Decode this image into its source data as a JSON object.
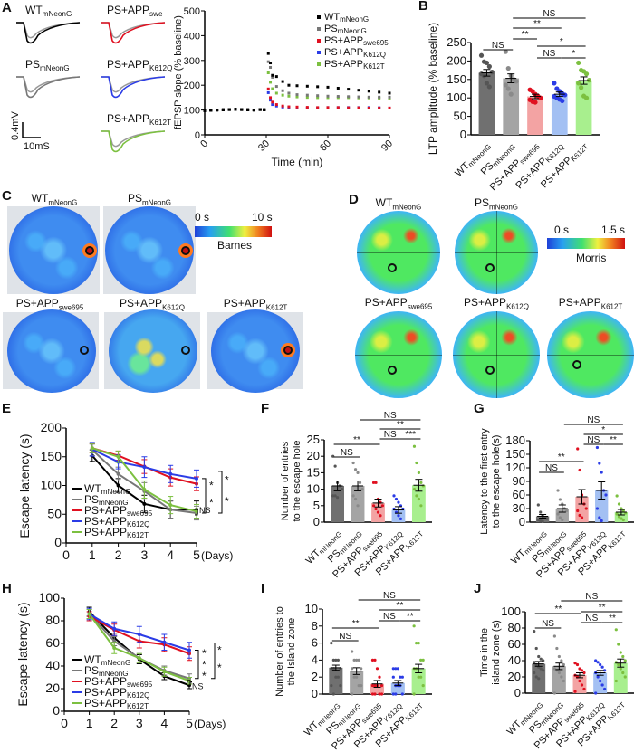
{
  "panel_letters": [
    "A",
    "B",
    "C",
    "D",
    "E",
    "F",
    "G",
    "H",
    "I",
    "J"
  ],
  "colors": {
    "WT": "#000000",
    "PS": "#777777",
    "swe695": "#e01020",
    "K612Q": "#2b3ce6",
    "K612T": "#7cc040"
  },
  "groups": [
    {
      "main": "WT",
      "sub": "mNeonG"
    },
    {
      "main": "PS",
      "sub": "mNeonG"
    },
    {
      "main": "PS+APP",
      "sub": "swe695"
    },
    {
      "main": "PS+APP",
      "sub": "K612Q"
    },
    {
      "main": "PS+APP",
      "sub": "K612T"
    }
  ],
  "traces": {
    "labels": [
      {
        "main": "WT",
        "sub": "mNeonG"
      },
      {
        "main": "PS+APP",
        "sub": "swe"
      },
      {
        "main": "PS",
        "sub": "mNeonG"
      },
      {
        "main": "PS+APP",
        "sub": "K612Q"
      },
      {
        "main": "PS+APP",
        "sub": "K612T"
      }
    ],
    "scale_v": "0.4mV",
    "scale_t": "10mS"
  },
  "heatmaps": {
    "barnes": {
      "labels": [
        {
          "main": "WT",
          "sub": "mNeonG"
        },
        {
          "main": "PS",
          "sub": "mNeonG"
        },
        {
          "main": "PS+APP",
          "sub": "swe695"
        },
        {
          "main": "PS+APP",
          "sub": "K612Q"
        },
        {
          "main": "PS+APP",
          "sub": "K612T"
        }
      ],
      "scale_min": "0 s",
      "scale_max": "10 s",
      "scale_name": "Barnes"
    },
    "morris": {
      "labels": [
        {
          "main": "WT",
          "sub": "mNeonG"
        },
        {
          "main": "PS",
          "sub": "mNeonG"
        },
        {
          "main": "PS+APP",
          "sub": "swe695"
        },
        {
          "main": "PS+APP",
          "sub": "K612Q"
        },
        {
          "main": "PS+APP",
          "sub": "K612T"
        }
      ],
      "scale_min": "0 s",
      "scale_max": "1.5 s",
      "scale_name": "Morris"
    }
  },
  "chart_data": [
    {
      "id": "A",
      "type": "scatter",
      "xlabel": "Time (min)",
      "ylabel": "fEPSP slope (% baseline)",
      "xlim": [
        0,
        90
      ],
      "ylim": [
        0,
        500
      ],
      "xticks": [
        0,
        30,
        60,
        90
      ],
      "yticks": [
        0,
        100,
        200,
        300,
        400,
        500
      ],
      "legend": "top-right",
      "x": [
        0,
        3,
        6,
        9,
        12,
        15,
        18,
        21,
        24,
        27,
        29,
        31,
        32,
        33,
        35,
        38,
        41,
        45,
        50,
        55,
        60,
        65,
        70,
        75,
        80,
        85,
        90
      ],
      "series": [
        {
          "name": "WT mNeonG",
          "key": "WT",
          "marker": "square",
          "values": [
            98,
            99,
            100,
            101,
            102,
            103,
            102,
            101,
            100,
            102,
            101,
            328,
            290,
            240,
            235,
            215,
            200,
            198,
            196,
            194,
            192,
            188,
            184,
            180,
            176,
            172,
            168
          ]
        },
        {
          "name": "PS mNeonG",
          "key": "PS",
          "marker": "circle",
          "values": [
            98,
            99,
            100,
            101,
            102,
            103,
            102,
            101,
            100,
            102,
            101,
            295,
            272,
            232,
            195,
            178,
            168,
            162,
            160,
            158,
            156,
            155,
            154,
            153,
            152,
            152,
            152
          ]
        },
        {
          "name": "PS+APP swe695",
          "key": "swe695",
          "marker": "triangle-down",
          "values": [
            98,
            99,
            100,
            101,
            102,
            103,
            102,
            101,
            100,
            102,
            101,
            185,
            150,
            132,
            122,
            116,
            113,
            112,
            111,
            110,
            110,
            110,
            109,
            109,
            108,
            108,
            108
          ]
        },
        {
          "name": "PS+APP K612Q",
          "key": "K612Q",
          "marker": "triangle-up",
          "values": [
            98,
            99,
            100,
            101,
            102,
            103,
            102,
            101,
            100,
            102,
            101,
            170,
            140,
            122,
            116,
            112,
            110,
            108,
            108,
            109,
            110,
            110,
            110,
            110,
            110,
            109,
            108
          ]
        },
        {
          "name": "PS+APP K612T",
          "key": "K612T",
          "marker": "diamond",
          "values": [
            98,
            99,
            100,
            101,
            102,
            103,
            102,
            101,
            100,
            102,
            101,
            250,
            212,
            186,
            168,
            160,
            156,
            153,
            151,
            150,
            150,
            150,
            150,
            149,
            149,
            148,
            148
          ]
        }
      ]
    },
    {
      "id": "B",
      "type": "bar",
      "ylabel": "LTP amplitude (% baseline)",
      "ylim": [
        0,
        250
      ],
      "yticks": [
        0,
        50,
        100,
        150,
        200,
        250
      ],
      "values": [
        168,
        153,
        104,
        110,
        147
      ],
      "errors": [
        9,
        12,
        6,
        6,
        10
      ],
      "points": [
        [
          215,
          198,
          195,
          185,
          170,
          165,
          160,
          140,
          130
        ],
        [
          225,
          180,
          160,
          150,
          145,
          135,
          125,
          110
        ],
        [
          122,
          118,
          110,
          105,
          100,
          95,
          90,
          88
        ],
        [
          140,
          125,
          118,
          112,
          108,
          104,
          100,
          96,
          92
        ],
        [
          195,
          175,
          172,
          165,
          148,
          140,
          128,
          105,
          100
        ]
      ],
      "significance": [
        {
          "from": 1,
          "to": 2,
          "label": "NS"
        },
        {
          "from": 2,
          "to": 3,
          "label": "**"
        },
        {
          "from": 2,
          "to": 4,
          "label": "**"
        },
        {
          "from": 2,
          "to": 5,
          "label": "NS"
        },
        {
          "from": 3,
          "to": 5,
          "label": "*"
        },
        {
          "from": 3,
          "to": 4,
          "label": "NS"
        },
        {
          "from": 4,
          "to": 5,
          "label": "*"
        }
      ]
    },
    {
      "id": "E",
      "type": "line",
      "ylabel": "Escape latency (s)",
      "xunit": "(Days)",
      "xlim": [
        0,
        5
      ],
      "ylim": [
        0,
        200
      ],
      "xticks": [
        0,
        1,
        2,
        3,
        4,
        5
      ],
      "yticks": [
        0,
        50,
        100,
        150,
        200
      ],
      "legend": "bottom-left",
      "x": [
        1,
        2,
        3,
        4,
        5
      ],
      "series": [
        {
          "name": "WT mNeonG",
          "key": "WT",
          "values": [
            152,
            100,
            68,
            58,
            58
          ],
          "errors": [
            10,
            12,
            15,
            15,
            15
          ]
        },
        {
          "name": "PS mNeonG",
          "key": "PS",
          "values": [
            162,
            120,
            90,
            58,
            52
          ],
          "errors": [
            10,
            12,
            15,
            15,
            12
          ]
        },
        {
          "name": "PS+APP swe695",
          "key": "swe695",
          "values": [
            165,
            152,
            133,
            114,
            103
          ],
          "errors": [
            8,
            8,
            12,
            15,
            12
          ]
        },
        {
          "name": "PS+APP K612Q",
          "key": "K612Q",
          "values": [
            163,
            141,
            132,
            120,
            112
          ],
          "errors": [
            12,
            12,
            18,
            15,
            15
          ]
        },
        {
          "name": "PS+APP K612T",
          "key": "K612T",
          "values": [
            165,
            150,
            93,
            66,
            55
          ],
          "errors": [
            8,
            10,
            15,
            15,
            12
          ]
        }
      ],
      "annotations": [
        "*",
        "*",
        "*",
        "*",
        "NS"
      ]
    },
    {
      "id": "F",
      "type": "bar",
      "ylabel": [
        "Number of entries",
        "to the escape hole"
      ],
      "ylim": [
        0,
        25
      ],
      "yticks": [
        0,
        5,
        10,
        15,
        20,
        25
      ],
      "values": [
        11,
        11,
        5.8,
        3.7,
        11.2
      ],
      "errors": [
        1.5,
        1.5,
        1.2,
        1,
        1.8
      ],
      "points": [
        [
          20,
          17,
          12,
          11,
          10,
          8,
          8,
          7.5
        ],
        [
          18,
          16,
          15,
          12,
          10,
          8,
          7,
          5
        ],
        [
          12,
          12,
          7,
          6,
          5,
          5,
          4,
          3,
          2
        ],
        [
          8,
          7,
          6,
          5,
          4,
          4,
          3,
          2,
          1
        ],
        [
          23,
          18,
          15,
          12,
          11,
          10,
          8,
          7,
          5
        ]
      ],
      "significance": [
        {
          "from": 2,
          "to": 5,
          "label": "NS"
        },
        {
          "from": 3,
          "to": 5,
          "label": "**"
        },
        {
          "from": 3,
          "to": 4,
          "label": "NS"
        },
        {
          "from": 4,
          "to": 5,
          "label": "***"
        },
        {
          "from": 1,
          "to": 3,
          "label": "**"
        },
        {
          "from": 1,
          "to": 2,
          "label": "NS"
        }
      ]
    },
    {
      "id": "G",
      "type": "bar",
      "ylabel": [
        "Latency to the first entry",
        "to the escape hole(s)"
      ],
      "ylim": [
        0,
        180
      ],
      "yticks": [
        0,
        30,
        60,
        90,
        120,
        150,
        180
      ],
      "values": [
        13,
        30,
        56,
        70,
        22
      ],
      "errors": [
        4,
        8,
        16,
        19,
        6
      ],
      "points": [
        [
          38,
          22,
          15,
          10,
          8,
          5,
          3,
          2
        ],
        [
          70,
          50,
          40,
          30,
          25,
          18,
          10,
          5
        ],
        [
          162,
          115,
          60,
          40,
          30,
          25,
          15,
          10
        ],
        [
          165,
          130,
          110,
          70,
          60,
          30,
          10,
          3
        ],
        [
          58,
          40,
          30,
          25,
          20,
          18,
          12,
          8,
          5
        ]
      ],
      "significance": [
        {
          "from": 2,
          "to": 5,
          "label": "NS"
        },
        {
          "from": 3,
          "to": 5,
          "label": "*"
        },
        {
          "from": 3,
          "to": 4,
          "label": "NS"
        },
        {
          "from": 4,
          "to": 5,
          "label": "**"
        },
        {
          "from": 1,
          "to": 3,
          "label": "**"
        },
        {
          "from": 1,
          "to": 2,
          "label": "NS"
        }
      ]
    },
    {
      "id": "H",
      "type": "line",
      "ylabel": "Escape latency (s)",
      "xunit": "(Days)",
      "xlim": [
        0,
        5
      ],
      "ylim": [
        0,
        100
      ],
      "xticks": [
        0,
        1,
        2,
        3,
        4,
        5
      ],
      "yticks": [
        0,
        20,
        40,
        60,
        80,
        100
      ],
      "legend": "bottom-left",
      "x": [
        1,
        2,
        3,
        4,
        5
      ],
      "series": [
        {
          "name": "WT mNeonG",
          "key": "WT",
          "values": [
            88,
            65,
            46,
            31,
            23
          ],
          "errors": [
            4,
            4,
            4,
            3,
            3
          ]
        },
        {
          "name": "PS mNeonG",
          "key": "PS",
          "values": [
            86,
            62,
            47,
            36,
            29
          ],
          "errors": [
            4,
            4,
            4,
            4,
            4
          ]
        },
        {
          "name": "PS+APP swe695",
          "key": "swe695",
          "values": [
            84,
            72,
            62,
            59,
            51
          ],
          "errors": [
            4,
            5,
            6,
            6,
            6
          ]
        },
        {
          "name": "PS+APP K612Q",
          "key": "K612Q",
          "values": [
            86,
            73,
            68,
            61,
            54
          ],
          "errors": [
            5,
            6,
            7,
            7,
            7
          ]
        },
        {
          "name": "PS+APP K612T",
          "key": "K612T",
          "values": [
            86,
            56,
            47,
            35,
            27
          ],
          "errors": [
            4,
            5,
            4,
            4,
            3
          ]
        }
      ],
      "annotations": [
        "*",
        "*",
        "*",
        "*",
        "*",
        "NS"
      ]
    },
    {
      "id": "I",
      "type": "bar",
      "ylabel": [
        "Number of entries to",
        "the Island zone"
      ],
      "ylim": [
        0,
        10
      ],
      "yticks": [
        0,
        2,
        4,
        6,
        8,
        10
      ],
      "values": [
        3.1,
        2.7,
        1.2,
        1.3,
        3.0
      ],
      "errors": [
        0.3,
        0.4,
        0.4,
        0.3,
        0.5
      ],
      "points": [
        [
          6,
          4,
          4,
          4,
          3,
          3,
          3,
          2,
          2,
          1,
          1,
          0
        ],
        [
          5,
          4,
          4,
          4,
          3,
          3,
          2,
          2,
          1,
          1,
          0
        ],
        [
          4,
          4,
          3,
          2,
          1,
          1,
          1,
          1,
          0,
          0,
          0,
          0
        ],
        [
          3,
          3,
          3,
          2,
          2,
          2,
          1,
          1,
          1,
          0,
          0,
          0
        ],
        [
          8,
          6,
          6,
          4,
          4,
          3,
          3,
          2,
          2,
          1,
          0
        ]
      ],
      "significance": [
        {
          "from": 2,
          "to": 5,
          "label": "NS"
        },
        {
          "from": 3,
          "to": 5,
          "label": "**"
        },
        {
          "from": 3,
          "to": 4,
          "label": "NS"
        },
        {
          "from": 4,
          "to": 5,
          "label": "**"
        },
        {
          "from": 1,
          "to": 3,
          "label": "**"
        },
        {
          "from": 1,
          "to": 2,
          "label": "NS"
        }
      ]
    },
    {
      "id": "J",
      "type": "bar",
      "ylabel": [
        "Time in the",
        "island zone (s)"
      ],
      "ylim": [
        0,
        100
      ],
      "yticks": [
        0,
        20,
        40,
        60,
        80,
        100
      ],
      "values": [
        36,
        33,
        22,
        25,
        37
      ],
      "errors": [
        3,
        4,
        3,
        3,
        5
      ],
      "points": [
        [
          76,
          55,
          45,
          42,
          40,
          38,
          35,
          32,
          30,
          28,
          25,
          20,
          18
        ],
        [
          70,
          55,
          45,
          40,
          35,
          30,
          28,
          25,
          20,
          15,
          0
        ],
        [
          37,
          35,
          30,
          28,
          25,
          22,
          20,
          15,
          10,
          5,
          2
        ],
        [
          40,
          38,
          35,
          32,
          28,
          25,
          20,
          15,
          10,
          5,
          0
        ],
        [
          78,
          60,
          50,
          45,
          40,
          38,
          35,
          30,
          25,
          20,
          15
        ]
      ],
      "significance": [
        {
          "from": 2,
          "to": 5,
          "label": "NS"
        },
        {
          "from": 3,
          "to": 5,
          "label": "**"
        },
        {
          "from": 3,
          "to": 4,
          "label": "NS"
        },
        {
          "from": 4,
          "to": 5,
          "label": "**"
        },
        {
          "from": 1,
          "to": 3,
          "label": "**"
        },
        {
          "from": 1,
          "to": 2,
          "label": "NS"
        }
      ]
    }
  ]
}
